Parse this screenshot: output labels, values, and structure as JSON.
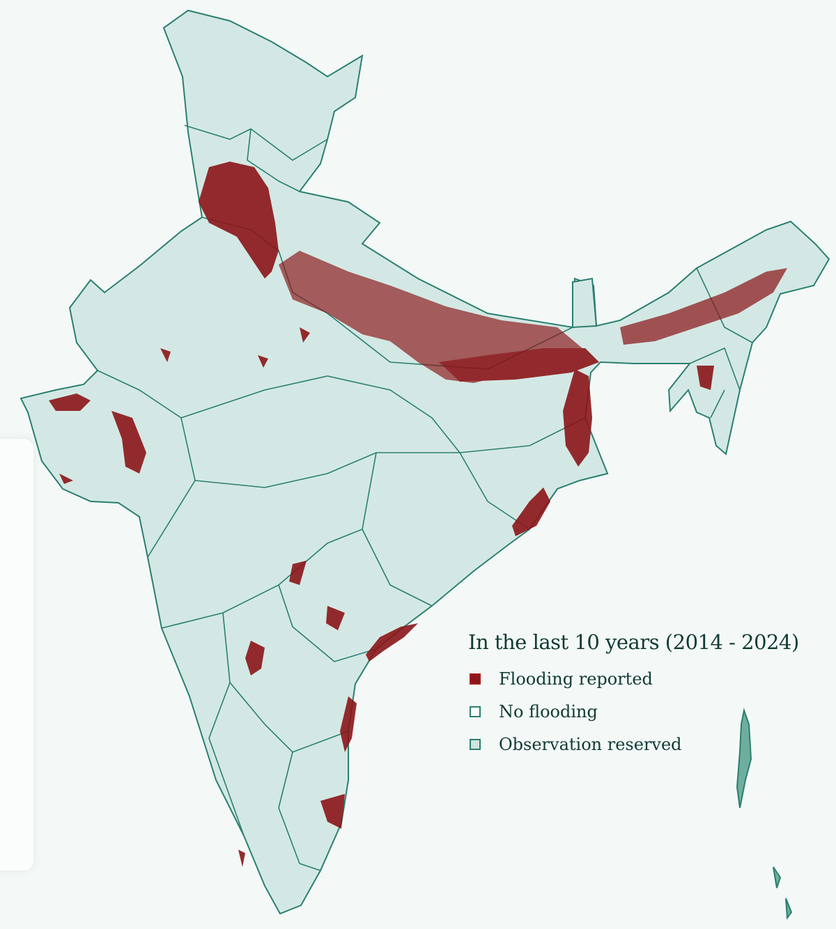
{
  "legend": {
    "title": "In the last 10 years  (2014 - 2024)",
    "items": [
      {
        "label": "Flooding reported",
        "color": "#8b1518"
      },
      {
        "label": "No flooding",
        "color": "#ffffff"
      },
      {
        "label": "Observation reserved",
        "color": "#cfe3df"
      }
    ]
  },
  "colors": {
    "land": "#d3e8e4",
    "border": "#2a7f70",
    "flood": "#8b1518",
    "background": "#f4f8f7"
  }
}
